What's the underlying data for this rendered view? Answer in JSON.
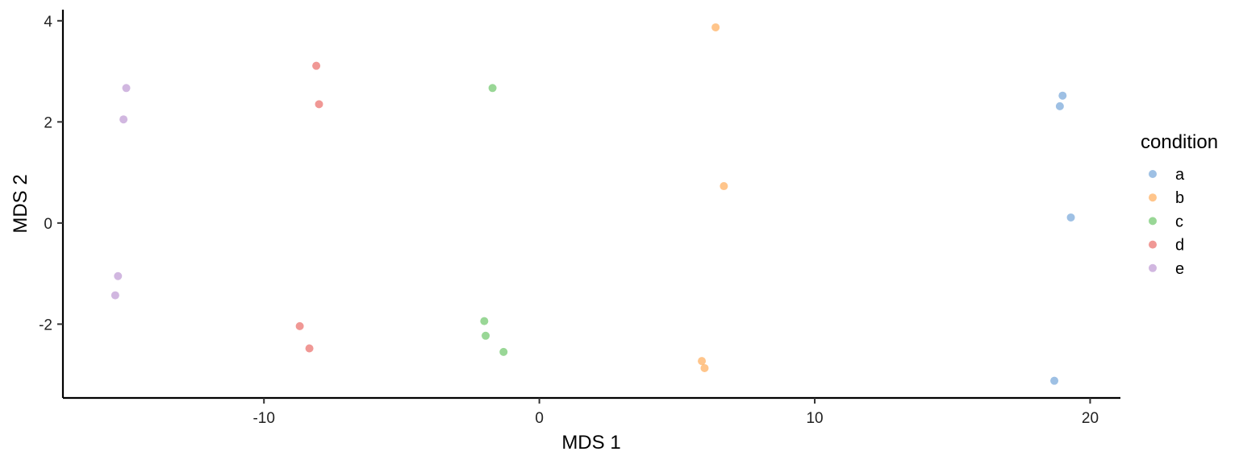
{
  "chart_data": {
    "type": "scatter",
    "title": "",
    "xlabel": "MDS 1",
    "ylabel": "MDS 2",
    "xlim": [
      -17.3,
      21.1
    ],
    "ylim": [
      -3.46,
      4.22
    ],
    "xticks": [
      -10,
      0,
      10,
      20
    ],
    "yticks": [
      -2,
      0,
      2,
      4
    ],
    "xtick_labels": [
      "-10",
      "0",
      "10",
      "20"
    ],
    "ytick_labels": [
      "-2",
      "0",
      "2",
      "4"
    ],
    "grid": false,
    "legend": {
      "title": "condition",
      "position": "right"
    },
    "series": [
      {
        "name": "a",
        "color": "#6A9ED6",
        "points": [
          [
            19.0,
            2.52
          ],
          [
            18.9,
            2.31
          ],
          [
            19.3,
            0.11
          ],
          [
            18.7,
            -3.12
          ]
        ]
      },
      {
        "name": "b",
        "color": "#FFA64D",
        "points": [
          [
            6.4,
            3.87
          ],
          [
            6.7,
            0.73
          ],
          [
            5.9,
            -2.73
          ],
          [
            6.0,
            -2.87
          ]
        ]
      },
      {
        "name": "c",
        "color": "#62C25E",
        "points": [
          [
            -1.7,
            2.67
          ],
          [
            -2.0,
            -1.94
          ],
          [
            -1.95,
            -2.23
          ],
          [
            -1.3,
            -2.55
          ]
        ]
      },
      {
        "name": "d",
        "color": "#E8615C",
        "points": [
          [
            -8.1,
            3.11
          ],
          [
            -8.0,
            2.35
          ],
          [
            -8.7,
            -2.04
          ],
          [
            -8.35,
            -2.48
          ]
        ]
      },
      {
        "name": "e",
        "color": "#B891D0",
        "points": [
          [
            -15.0,
            2.67
          ],
          [
            -15.1,
            2.05
          ],
          [
            -15.3,
            -1.05
          ],
          [
            -15.4,
            -1.43
          ]
        ]
      }
    ]
  }
}
